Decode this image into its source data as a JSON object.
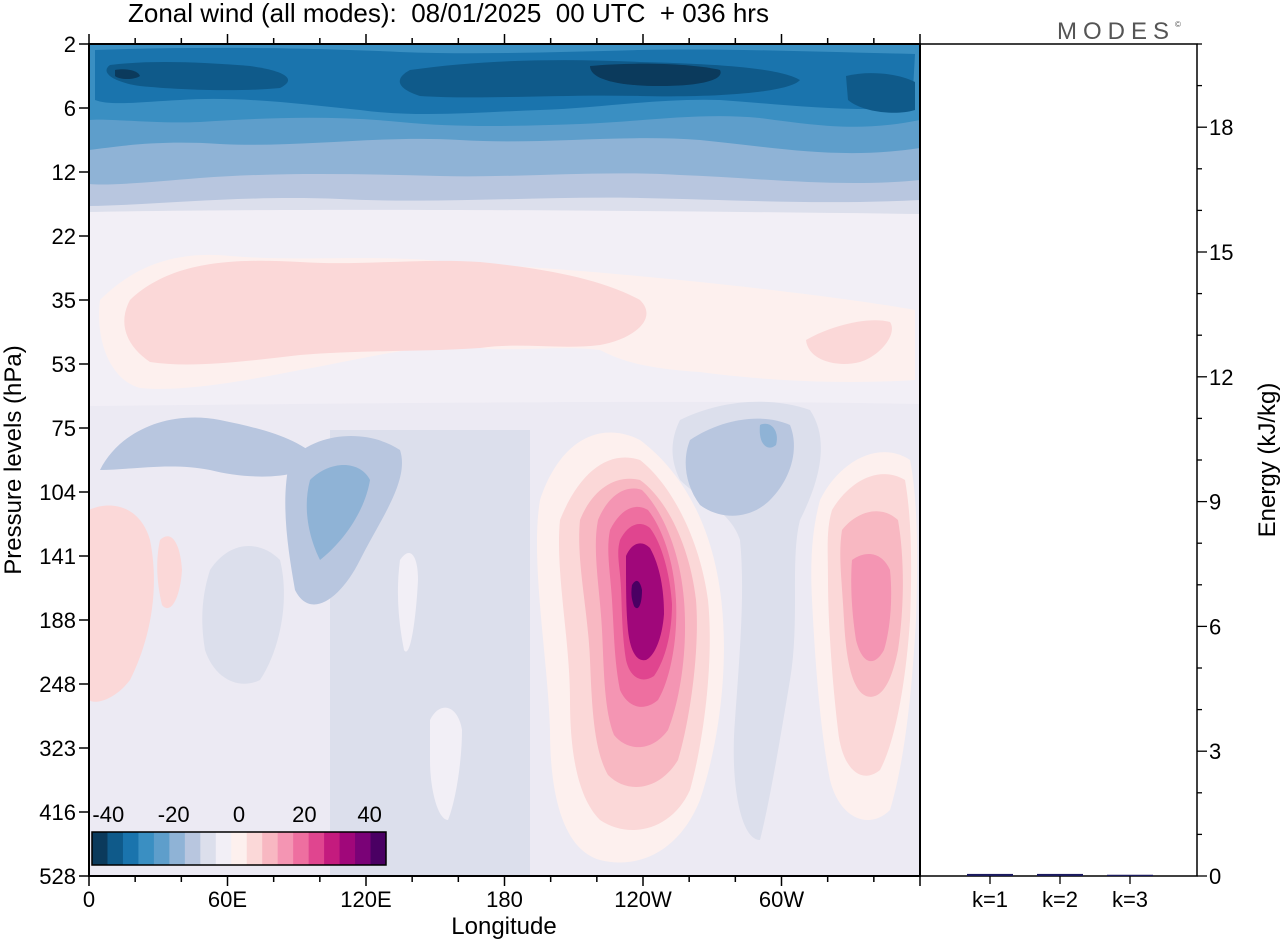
{
  "header": {
    "title": "Zonal wind (all modes):  08/01/2025  00 UTC  + 036 hrs",
    "logo": "MODES",
    "logo_mark": "©"
  },
  "chart_data": [
    {
      "type": "heatmap",
      "title": "Zonal wind (all modes):  08/01/2025  00 UTC  + 036 hrs",
      "xlabel": "Longitude",
      "ylabel": "Pressure levels (hPa)",
      "x_ticks": [
        "0",
        "60E",
        "120E",
        "180",
        "120W",
        "60W"
      ],
      "y_ticks": [
        "2",
        "6",
        "12",
        "22",
        "35",
        "53",
        "75",
        "104",
        "141",
        "188",
        "248",
        "323",
        "416",
        "528"
      ],
      "y_reversed": true,
      "colorbar": {
        "tick_labels": [
          "-40",
          "-20",
          "0",
          "20",
          "40"
        ],
        "levels": [
          -45,
          -40,
          -35,
          -30,
          -25,
          -20,
          -15,
          -10,
          -5,
          0,
          5,
          10,
          15,
          20,
          25,
          30,
          35,
          40,
          45
        ],
        "colors": [
          "#0b3a5c",
          "#0f5a8a",
          "#1a74ad",
          "#3a8fc2",
          "#5e9ecb",
          "#8fb3d6",
          "#b8c6df",
          "#dcdfec",
          "#f2eff6",
          "#fdf0ee",
          "#fbd8d8",
          "#f8b8c2",
          "#f495b3",
          "#ee6fa0",
          "#e0458f",
          "#c41b7e",
          "#a0077a",
          "#7a0277",
          "#4a0063"
        ]
      }
    },
    {
      "type": "bar",
      "ylabel": "Energy (kJ/kg)",
      "categories": [
        "k=1",
        "k=2",
        "k=3"
      ],
      "values": [
        0.05,
        0.05,
        0.03
      ],
      "ylim": [
        0,
        20
      ],
      "y_ticks": [
        "0",
        "3",
        "6",
        "9",
        "12",
        "15",
        "18"
      ],
      "bar_color": "#1a1a5e"
    }
  ]
}
